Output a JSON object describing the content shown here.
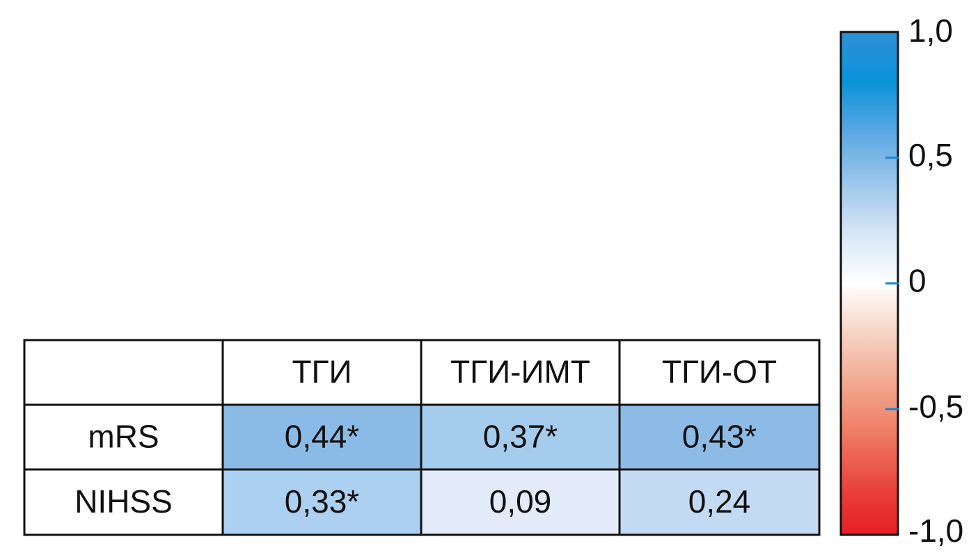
{
  "chart_data": {
    "type": "heatmap",
    "rows": [
      "mRS",
      "NIHSS"
    ],
    "columns": [
      "ТГИ",
      "ТГИ-ИМТ",
      "ТГИ-ОТ"
    ],
    "values": [
      [
        0.44,
        0.37,
        0.43
      ],
      [
        0.33,
        0.09,
        0.24
      ]
    ],
    "value_labels": [
      [
        "0,44*",
        "0,37*",
        "0,43*"
      ],
      [
        "0,33*",
        "0,09",
        "0,24"
      ]
    ],
    "colors": [
      [
        "#8abbe6",
        "#a5cbed",
        "#8cbce6"
      ],
      [
        "#acd0ef",
        "#e3ebf8",
        "#c2dbf3"
      ]
    ],
    "colorbar": {
      "lim": [
        -1.0,
        1.0
      ],
      "ticks": [
        {
          "value": 1.0,
          "label": "1,0"
        },
        {
          "value": 0.5,
          "label": "0,5"
        },
        0,
        {
          "value": -0.5,
          "label": "-0,5"
        },
        {
          "value": -1.0,
          "label": "-1,0"
        }
      ],
      "colors": [
        "#2f8fd8",
        "#0a93d8",
        "#5aa8e2",
        "#9cc6ec",
        "#d6e6f6",
        "#ffffff",
        "#f7d3c4",
        "#f2a88f",
        "#ee7b63",
        "#e8473c",
        "#e51e25"
      ],
      "tick_color": "#1a84cf"
    }
  }
}
